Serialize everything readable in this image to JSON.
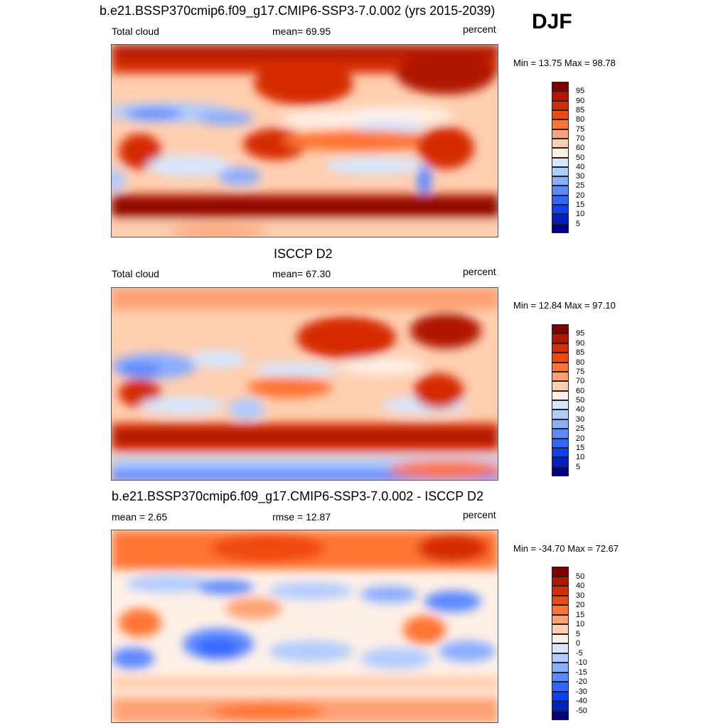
{
  "season": "DJF",
  "panels": [
    {
      "title": "b.e21.BSSP370cmip6.f09_g17.CMIP6-SSP3-7.0.002 (yrs 2015-2039)",
      "left_label": "Total cloud",
      "center_label": "mean=  69.95",
      "units": "percent",
      "minmax": "Min =  13.75 Max =  98.78",
      "colorbar": {
        "colors": [
          "#800000",
          "#b01700",
          "#d52c00",
          "#f04a10",
          "#ff7433",
          "#ffa172",
          "#ffcfb0",
          "#fff0e6",
          "#d6e7ff",
          "#b0ccff",
          "#8aadff",
          "#5c89ff",
          "#3366ff",
          "#0d42f2",
          "#0020c4",
          "#000080"
        ],
        "labels": [
          "95",
          "90",
          "85",
          "80",
          "75",
          "70",
          "60",
          "50",
          "40",
          "30",
          "25",
          "20",
          "15",
          "10",
          "5"
        ]
      }
    },
    {
      "title": "ISCCP D2",
      "left_label": "Total cloud",
      "center_label": "mean=  67.30",
      "units": "percent",
      "minmax": "Min =  12.84 Max =  97.10",
      "colorbar": {
        "colors": [
          "#800000",
          "#b01700",
          "#d52c00",
          "#f04a10",
          "#ff7433",
          "#ffa172",
          "#ffcfb0",
          "#fff0e6",
          "#d6e7ff",
          "#b0ccff",
          "#8aadff",
          "#5c89ff",
          "#3366ff",
          "#0d42f2",
          "#0020c4",
          "#000080"
        ],
        "labels": [
          "95",
          "90",
          "85",
          "80",
          "75",
          "70",
          "60",
          "50",
          "40",
          "30",
          "25",
          "20",
          "15",
          "10",
          "5"
        ]
      }
    },
    {
      "title": "b.e21.BSSP370cmip6.f09_g17.CMIP6-SSP3-7.0.002 - ISCCP D2",
      "left_label": "mean =   2.65",
      "center_label": "rmse =  12.87",
      "units": "percent",
      "minmax": "Min = -34.70 Max =  72.67",
      "colorbar": {
        "colors": [
          "#800000",
          "#b01700",
          "#d52c00",
          "#f04a10",
          "#ff7433",
          "#ffa172",
          "#ffcfb0",
          "#fff0e6",
          "#d6e7ff",
          "#b0ccff",
          "#8aadff",
          "#5c89ff",
          "#3366ff",
          "#0d42f2",
          "#0020c4",
          "#000080"
        ],
        "labels": [
          "50",
          "40",
          "30",
          "20",
          "15",
          "10",
          "5",
          "0",
          "-5",
          "-10",
          "-15",
          "-20",
          "-30",
          "-40",
          "-50"
        ]
      }
    }
  ]
}
